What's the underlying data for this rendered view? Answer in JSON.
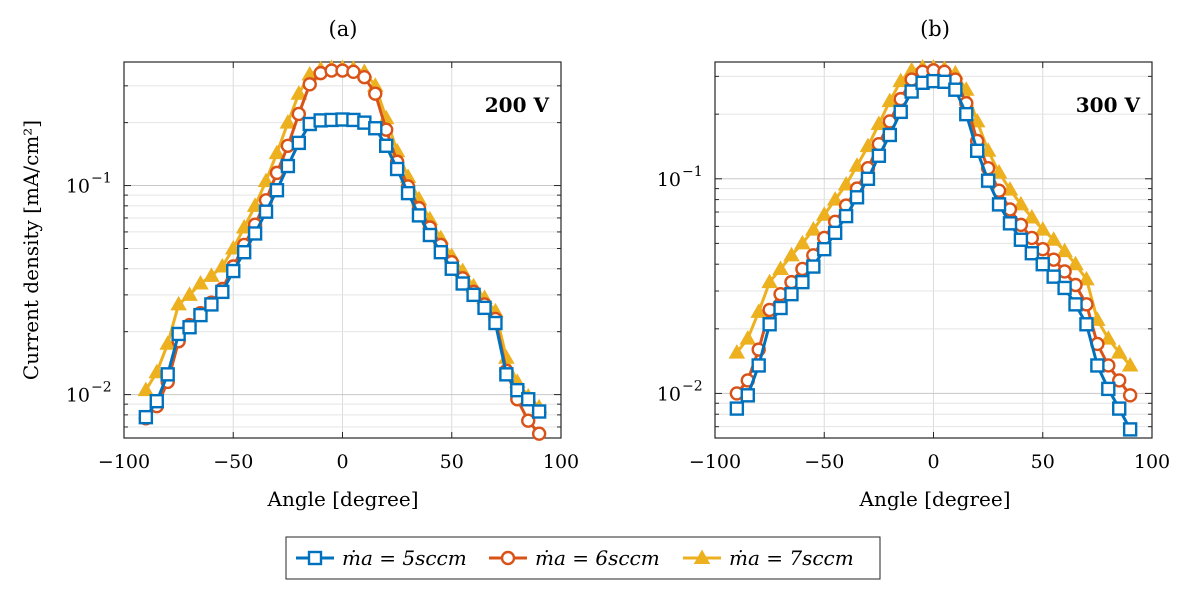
{
  "colors": {
    "s5": "#0072BD",
    "s6": "#D95319",
    "s7": "#EDB120"
  },
  "legend": [
    {
      "key": "s5",
      "label": "ṁa = 5sccm",
      "marker": "square"
    },
    {
      "key": "s6",
      "label": "ṁa = 6sccm",
      "marker": "circle"
    },
    {
      "key": "s7",
      "label": "ṁa = 7sccm",
      "marker": "triangle"
    }
  ],
  "chart_data": [
    {
      "type": "line",
      "panel": "(a)",
      "annotation": "200 V",
      "xlabel": "Angle [degree]",
      "ylabel": "Current density [mA/cm²]",
      "xlim": [
        -100,
        100
      ],
      "ylim": [
        0.0062,
        0.39
      ],
      "yscale": "log",
      "grid": true,
      "xticks": [
        "−100",
        "−50",
        "0",
        "50",
        "100"
      ],
      "yticks": [
        {
          "value": 0.1,
          "label": "10",
          "exp": "−1"
        },
        {
          "value": 0.01,
          "label": "10",
          "exp": "−2"
        }
      ],
      "x": [
        -90,
        -85,
        -80,
        -75,
        -70,
        -65,
        -60,
        -55,
        -50,
        -45,
        -40,
        -35,
        -30,
        -25,
        -20,
        -15,
        -10,
        -5,
        0,
        5,
        10,
        15,
        20,
        25,
        30,
        35,
        40,
        45,
        50,
        55,
        60,
        65,
        70,
        75,
        80,
        85,
        90
      ],
      "series": [
        {
          "key": "s5",
          "values": [
            0.0078,
            0.0093,
            0.0125,
            0.0195,
            0.021,
            0.024,
            0.027,
            0.031,
            0.039,
            0.048,
            0.059,
            0.075,
            0.095,
            0.124,
            0.16,
            0.197,
            0.205,
            0.206,
            0.207,
            0.206,
            0.2,
            0.188,
            0.155,
            0.12,
            0.092,
            0.072,
            0.058,
            0.048,
            0.04,
            0.034,
            0.03,
            0.026,
            0.022,
            0.0125,
            0.0105,
            0.0095,
            0.0083
          ]
        },
        {
          "key": "s6",
          "values": [
            0.0077,
            0.0088,
            0.0115,
            0.018,
            0.0215,
            0.0245,
            0.0275,
            0.032,
            0.041,
            0.052,
            0.065,
            0.085,
            0.115,
            0.155,
            0.22,
            0.305,
            0.345,
            0.355,
            0.355,
            0.35,
            0.33,
            0.275,
            0.185,
            0.13,
            0.099,
            0.078,
            0.063,
            0.052,
            0.043,
            0.036,
            0.031,
            0.027,
            0.023,
            0.013,
            0.0095,
            0.0075,
            0.0065
          ]
        },
        {
          "key": "s7",
          "values": [
            0.0105,
            0.0128,
            0.0175,
            0.027,
            0.03,
            0.034,
            0.037,
            0.041,
            0.05,
            0.063,
            0.08,
            0.105,
            0.143,
            0.2,
            0.275,
            0.34,
            0.36,
            0.365,
            0.365,
            0.362,
            0.35,
            0.3,
            0.21,
            0.146,
            0.11,
            0.086,
            0.069,
            0.056,
            0.046,
            0.039,
            0.033,
            0.029,
            0.025,
            0.015,
            0.0115,
            0.0098,
            0.0087
          ]
        }
      ]
    },
    {
      "type": "line",
      "panel": "(b)",
      "annotation": "300 V",
      "xlabel": "Angle [degree]",
      "ylabel": "",
      "xlim": [
        -100,
        100
      ],
      "ylim": [
        0.0062,
        0.35
      ],
      "yscale": "log",
      "grid": true,
      "xticks": [
        "−100",
        "−50",
        "0",
        "50",
        "100"
      ],
      "yticks": [
        {
          "value": 0.1,
          "label": "10",
          "exp": "−1"
        },
        {
          "value": 0.01,
          "label": "10",
          "exp": "−2"
        }
      ],
      "x": [
        -90,
        -85,
        -80,
        -75,
        -70,
        -65,
        -60,
        -55,
        -50,
        -45,
        -40,
        -35,
        -30,
        -25,
        -20,
        -15,
        -10,
        -5,
        0,
        5,
        10,
        15,
        20,
        25,
        30,
        35,
        40,
        45,
        50,
        55,
        60,
        65,
        70,
        75,
        80,
        85,
        90
      ],
      "series": [
        {
          "key": "s5",
          "values": [
            0.0085,
            0.0098,
            0.0135,
            0.021,
            0.025,
            0.029,
            0.033,
            0.039,
            0.047,
            0.056,
            0.067,
            0.082,
            0.1,
            0.128,
            0.16,
            0.205,
            0.255,
            0.28,
            0.285,
            0.283,
            0.26,
            0.2,
            0.135,
            0.098,
            0.076,
            0.062,
            0.052,
            0.045,
            0.04,
            0.035,
            0.031,
            0.026,
            0.021,
            0.0135,
            0.0105,
            0.0085,
            0.0068
          ]
        },
        {
          "key": "s6",
          "values": [
            0.01,
            0.0115,
            0.016,
            0.0245,
            0.029,
            0.033,
            0.038,
            0.044,
            0.053,
            0.063,
            0.075,
            0.09,
            0.112,
            0.145,
            0.185,
            0.235,
            0.29,
            0.315,
            0.32,
            0.315,
            0.29,
            0.225,
            0.15,
            0.112,
            0.088,
            0.072,
            0.061,
            0.053,
            0.047,
            0.042,
            0.037,
            0.032,
            0.026,
            0.017,
            0.0135,
            0.0115,
            0.0098
          ]
        },
        {
          "key": "s7",
          "values": [
            0.0155,
            0.018,
            0.024,
            0.033,
            0.038,
            0.044,
            0.05,
            0.058,
            0.068,
            0.08,
            0.094,
            0.115,
            0.142,
            0.18,
            0.23,
            0.285,
            0.32,
            0.33,
            0.33,
            0.325,
            0.31,
            0.26,
            0.185,
            0.135,
            0.107,
            0.089,
            0.076,
            0.066,
            0.058,
            0.052,
            0.046,
            0.04,
            0.034,
            0.022,
            0.018,
            0.0155,
            0.0135
          ]
        }
      ]
    }
  ]
}
